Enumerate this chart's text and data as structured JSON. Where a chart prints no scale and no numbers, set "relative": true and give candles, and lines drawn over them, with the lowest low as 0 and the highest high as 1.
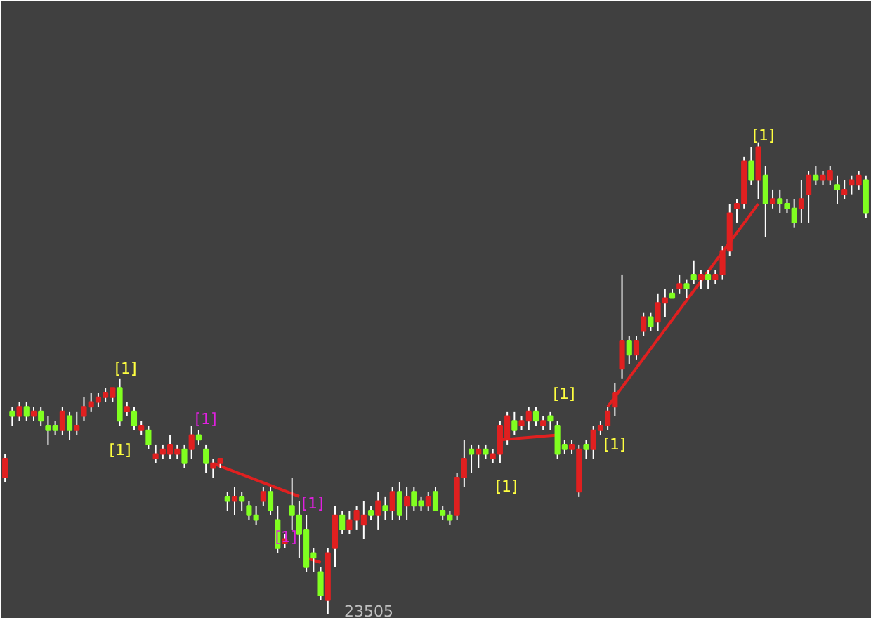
{
  "chart_data": {
    "type": "candlestick",
    "relative": true,
    "grid": false,
    "tick_labels": false,
    "categories": [
      null,
      null,
      null,
      null,
      null,
      null,
      null,
      null,
      null,
      null,
      null,
      null,
      null,
      null,
      null,
      null,
      null,
      null,
      null,
      null,
      null,
      null,
      null,
      null,
      null,
      null,
      null,
      null,
      null,
      null,
      null,
      null,
      null,
      null,
      null,
      null,
      null,
      null,
      null,
      null,
      null,
      null,
      null,
      null,
      null,
      null,
      null,
      null,
      null,
      null,
      null,
      null,
      null,
      null,
      null,
      null,
      null,
      null,
      null,
      null,
      null,
      null,
      null,
      null,
      null,
      null,
      null,
      null,
      null,
      null,
      null,
      null,
      null,
      null,
      null,
      null,
      null,
      null,
      null,
      null,
      null,
      null,
      null,
      null,
      null,
      null,
      null,
      null,
      null,
      null,
      null,
      null,
      null,
      null,
      null,
      null,
      null,
      null,
      null,
      null,
      null,
      null,
      null,
      null,
      null,
      null,
      null,
      null,
      null,
      null,
      null,
      null,
      null,
      null,
      null,
      null,
      null,
      null,
      null,
      null,
      null
    ],
    "ohlc": [
      [
        0.29,
        0.34,
        0.28,
        0.33
      ],
      [
        0.43,
        0.44,
        0.4,
        0.42
      ],
      [
        0.42,
        0.45,
        0.41,
        0.44
      ],
      [
        0.44,
        0.45,
        0.41,
        0.42
      ],
      [
        0.42,
        0.44,
        0.41,
        0.43
      ],
      [
        0.43,
        0.44,
        0.4,
        0.41
      ],
      [
        0.4,
        0.42,
        0.36,
        0.39
      ],
      [
        0.4,
        0.41,
        0.38,
        0.39
      ],
      [
        0.39,
        0.44,
        0.38,
        0.43
      ],
      [
        0.42,
        0.43,
        0.37,
        0.39
      ],
      [
        0.39,
        0.43,
        0.38,
        0.4
      ],
      [
        0.42,
        0.46,
        0.41,
        0.44
      ],
      [
        0.44,
        0.47,
        0.43,
        0.45
      ],
      [
        0.45,
        0.47,
        0.44,
        0.46
      ],
      [
        0.46,
        0.48,
        0.45,
        0.47
      ],
      [
        0.46,
        0.48,
        0.45,
        0.48
      ],
      [
        0.48,
        0.5,
        0.4,
        0.41
      ],
      [
        0.43,
        0.45,
        0.42,
        0.44
      ],
      [
        0.43,
        0.44,
        0.39,
        0.4
      ],
      [
        0.39,
        0.41,
        0.38,
        0.4
      ],
      [
        0.39,
        0.4,
        0.35,
        0.36
      ],
      [
        0.33,
        0.36,
        0.32,
        0.34
      ],
      [
        0.34,
        0.36,
        0.33,
        0.35
      ],
      [
        0.34,
        0.38,
        0.33,
        0.36
      ],
      [
        0.34,
        0.36,
        0.33,
        0.35
      ],
      [
        0.35,
        0.36,
        0.31,
        0.32
      ],
      [
        0.35,
        0.4,
        0.33,
        0.38
      ],
      [
        0.38,
        0.39,
        0.36,
        0.37
      ],
      [
        0.35,
        0.36,
        0.3,
        0.32
      ],
      [
        0.31,
        0.33,
        0.29,
        0.32
      ],
      [
        0.32,
        0.33,
        0.31,
        0.33
      ],
      [
        0.25,
        0.26,
        0.22,
        0.24
      ],
      [
        0.24,
        0.27,
        0.21,
        0.25
      ],
      [
        0.25,
        0.26,
        0.22,
        0.24
      ],
      [
        0.23,
        0.24,
        0.2,
        0.21
      ],
      [
        0.21,
        0.23,
        0.19,
        0.2
      ],
      [
        0.24,
        0.27,
        0.23,
        0.26
      ],
      [
        0.26,
        0.27,
        0.21,
        0.22
      ],
      [
        0.2,
        0.23,
        0.13,
        0.14
      ],
      [
        0.15,
        0.17,
        0.14,
        0.16
      ],
      [
        0.23,
        0.29,
        0.18,
        0.21
      ],
      [
        0.21,
        0.24,
        0.12,
        0.17
      ],
      [
        0.18,
        0.21,
        0.09,
        0.1
      ],
      [
        0.13,
        0.14,
        0.09,
        0.12
      ],
      [
        0.09,
        0.1,
        0.03,
        0.04
      ],
      [
        0.03,
        0.14,
        0.0,
        0.13
      ],
      [
        0.14,
        0.23,
        0.1,
        0.21
      ],
      [
        0.21,
        0.22,
        0.17,
        0.18
      ],
      [
        0.18,
        0.22,
        0.17,
        0.2
      ],
      [
        0.2,
        0.23,
        0.18,
        0.22
      ],
      [
        0.19,
        0.24,
        0.16,
        0.21
      ],
      [
        0.22,
        0.23,
        0.2,
        0.21
      ],
      [
        0.21,
        0.26,
        0.18,
        0.24
      ],
      [
        0.23,
        0.25,
        0.2,
        0.22
      ],
      [
        0.22,
        0.27,
        0.2,
        0.26
      ],
      [
        0.26,
        0.28,
        0.2,
        0.21
      ],
      [
        0.23,
        0.27,
        0.2,
        0.25
      ],
      [
        0.26,
        0.27,
        0.22,
        0.23
      ],
      [
        0.24,
        0.25,
        0.22,
        0.23
      ],
      [
        0.23,
        0.26,
        0.22,
        0.25
      ],
      [
        0.26,
        0.27,
        0.22,
        0.22
      ],
      [
        0.22,
        0.23,
        0.2,
        0.21
      ],
      [
        0.21,
        0.22,
        0.19,
        0.2
      ],
      [
        0.21,
        0.3,
        0.2,
        0.29
      ],
      [
        0.29,
        0.37,
        0.27,
        0.33
      ],
      [
        0.35,
        0.36,
        0.3,
        0.34
      ],
      [
        0.34,
        0.36,
        0.31,
        0.35
      ],
      [
        0.35,
        0.36,
        0.33,
        0.34
      ],
      [
        0.33,
        0.35,
        0.32,
        0.34
      ],
      [
        0.34,
        0.41,
        0.32,
        0.4
      ],
      [
        0.37,
        0.43,
        0.36,
        0.42
      ],
      [
        0.41,
        0.43,
        0.38,
        0.39
      ],
      [
        0.4,
        0.42,
        0.39,
        0.41
      ],
      [
        0.41,
        0.44,
        0.39,
        0.43
      ],
      [
        0.43,
        0.44,
        0.4,
        0.41
      ],
      [
        0.4,
        0.42,
        0.39,
        0.41
      ],
      [
        0.42,
        0.43,
        0.39,
        0.41
      ],
      [
        0.4,
        0.41,
        0.33,
        0.34
      ],
      [
        0.36,
        0.37,
        0.34,
        0.35
      ],
      [
        0.35,
        0.37,
        0.34,
        0.36
      ],
      [
        0.26,
        0.36,
        0.25,
        0.35
      ],
      [
        0.36,
        0.37,
        0.33,
        0.35
      ],
      [
        0.35,
        0.4,
        0.33,
        0.39
      ],
      [
        0.39,
        0.41,
        0.38,
        0.4
      ],
      [
        0.4,
        0.44,
        0.39,
        0.43
      ],
      [
        0.44,
        0.49,
        0.42,
        0.47
      ],
      [
        0.52,
        0.72,
        0.5,
        0.58
      ],
      [
        0.58,
        0.59,
        0.53,
        0.55
      ],
      [
        0.55,
        0.59,
        0.54,
        0.58
      ],
      [
        0.6,
        0.64,
        0.59,
        0.63
      ],
      [
        0.63,
        0.64,
        0.6,
        0.61
      ],
      [
        0.62,
        0.68,
        0.6,
        0.66
      ],
      [
        0.66,
        0.69,
        0.63,
        0.67
      ],
      [
        0.68,
        0.69,
        0.67,
        0.67
      ],
      [
        0.69,
        0.72,
        0.68,
        0.7
      ],
      [
        0.7,
        0.71,
        0.67,
        0.69
      ],
      [
        0.72,
        0.75,
        0.7,
        0.71
      ],
      [
        0.71,
        0.73,
        0.69,
        0.72
      ],
      [
        0.72,
        0.73,
        0.69,
        0.71
      ],
      [
        0.71,
        0.73,
        0.7,
        0.72
      ],
      [
        0.72,
        0.78,
        0.71,
        0.77
      ],
      [
        0.77,
        0.87,
        0.76,
        0.85
      ],
      [
        0.86,
        0.88,
        0.83,
        0.87
      ],
      [
        0.87,
        0.97,
        0.86,
        0.96
      ],
      [
        0.96,
        0.99,
        0.91,
        0.92
      ],
      [
        0.92,
        1.0,
        0.88,
        0.99
      ],
      [
        0.93,
        0.95,
        0.8,
        0.87
      ],
      [
        0.87,
        0.9,
        0.86,
        0.88
      ],
      [
        0.88,
        0.9,
        0.85,
        0.87
      ],
      [
        0.87,
        0.88,
        0.85,
        0.86
      ],
      [
        0.86,
        0.88,
        0.82,
        0.83
      ],
      [
        0.86,
        0.92,
        0.83,
        0.88
      ],
      [
        0.89,
        0.94,
        0.83,
        0.93
      ],
      [
        0.93,
        0.95,
        0.91,
        0.92
      ],
      [
        0.92,
        0.94,
        0.91,
        0.93
      ],
      [
        0.92,
        0.95,
        0.91,
        0.94
      ],
      [
        0.91,
        0.93,
        0.87,
        0.9
      ],
      [
        0.89,
        0.92,
        0.88,
        0.9
      ],
      [
        0.91,
        0.93,
        0.89,
        0.92
      ],
      [
        0.91,
        0.94,
        0.9,
        0.93
      ],
      [
        0.92,
        0.93,
        0.84,
        0.85
      ]
    ],
    "colors": [
      "#e02020",
      "#80ff20",
      "#e02020",
      "#80ff20",
      "#e02020",
      "#80ff20",
      "#80ff20",
      "#80ff20",
      "#e02020",
      "#80ff20",
      "#e02020",
      "#e02020",
      "#e02020",
      "#e02020",
      "#e02020",
      "#e02020",
      "#80ff20",
      "#e02020",
      "#80ff20",
      "#e02020",
      "#80ff20",
      "#e02020",
      "#e02020",
      "#e02020",
      "#e02020",
      "#80ff20",
      "#e02020",
      "#80ff20",
      "#80ff20",
      "#e02020",
      "#e02020",
      "#80ff20",
      "#e02020",
      "#80ff20",
      "#80ff20",
      "#80ff20",
      "#e02020",
      "#80ff20",
      "#80ff20",
      "#e02020",
      "#80ff20",
      "#80ff20",
      "#80ff20",
      "#80ff20",
      "#80ff20",
      "#e02020",
      "#e02020",
      "#80ff20",
      "#e02020",
      "#e02020",
      "#e02020",
      "#80ff20",
      "#e02020",
      "#80ff20",
      "#e02020",
      "#80ff20",
      "#e02020",
      "#80ff20",
      "#80ff20",
      "#e02020",
      "#80ff20",
      "#80ff20",
      "#80ff20",
      "#e02020",
      "#e02020",
      "#80ff20",
      "#e02020",
      "#80ff20",
      "#e02020",
      "#e02020",
      "#e02020",
      "#80ff20",
      "#e02020",
      "#e02020",
      "#80ff20",
      "#e02020",
      "#80ff20",
      "#80ff20",
      "#80ff20",
      "#e02020",
      "#e02020",
      "#80ff20",
      "#e02020",
      "#e02020",
      "#e02020",
      "#e02020",
      "#e02020",
      "#80ff20",
      "#e02020",
      "#e02020",
      "#80ff20",
      "#e02020",
      "#e02020",
      "#80ff20",
      "#e02020",
      "#80ff20",
      "#80ff20",
      "#e02020",
      "#80ff20",
      "#e02020",
      "#e02020",
      "#e02020",
      "#e02020",
      "#e02020",
      "#80ff20",
      "#e02020",
      "#80ff20",
      "#e02020",
      "#80ff20",
      "#80ff20",
      "#80ff20",
      "#e02020",
      "#e02020",
      "#80ff20",
      "#e02020",
      "#e02020",
      "#80ff20",
      "#e02020",
      "#e02020",
      "#e02020",
      "#80ff20"
    ],
    "series": [
      {
        "type": "line",
        "color": "#e02020",
        "values": [
          null,
          null,
          null,
          null,
          null,
          null,
          null,
          null,
          null,
          null,
          null,
          null,
          null,
          null,
          null,
          null,
          null,
          null,
          null,
          null,
          null,
          null,
          null,
          null,
          null,
          null,
          null,
          null,
          null,
          0.32,
          null,
          null,
          null,
          null,
          null,
          null,
          null,
          null,
          null,
          null,
          null,
          0.25,
          null,
          null,
          null,
          null,
          null,
          null,
          null,
          null,
          null,
          null,
          null,
          null,
          null,
          null,
          null,
          null,
          null,
          null,
          null,
          null,
          null,
          null,
          null,
          null,
          null,
          null,
          null,
          null,
          null,
          null,
          null,
          null,
          null,
          null,
          null,
          null,
          null,
          null,
          null,
          null,
          null,
          null,
          null,
          null,
          null,
          null,
          null,
          null,
          null,
          null,
          null,
          null,
          null,
          null,
          null,
          null,
          null,
          null,
          null,
          null,
          null,
          null,
          null,
          null,
          null,
          null,
          null,
          null,
          null,
          null,
          null,
          null,
          null,
          null,
          null,
          null,
          null,
          null,
          null
        ]
      },
      {
        "type": "line",
        "color": "#e02020",
        "values": [
          null,
          null,
          null,
          null,
          null,
          null,
          null,
          null,
          null,
          null,
          null,
          null,
          null,
          null,
          null,
          null,
          null,
          null,
          null,
          null,
          null,
          null,
          null,
          null,
          null,
          null,
          null,
          null,
          null,
          null,
          null,
          null,
          null,
          null,
          null,
          null,
          null,
          null,
          null,
          null,
          null,
          null,
          0.12,
          null,
          0.11,
          null,
          null,
          null,
          null,
          null,
          null,
          null,
          null,
          null,
          null,
          null,
          null,
          null,
          null,
          null,
          null,
          null,
          null,
          null,
          null,
          null,
          null,
          null,
          null,
          null,
          null,
          null,
          null,
          null,
          null,
          null,
          null,
          null,
          null,
          null,
          null,
          null,
          null,
          null,
          null,
          null,
          null,
          null,
          null,
          null,
          null,
          null,
          null,
          null,
          null,
          null,
          null,
          null,
          null,
          null,
          null,
          null,
          null,
          null,
          null,
          null,
          null,
          null,
          null,
          null,
          null,
          null,
          null,
          null,
          null,
          null,
          null,
          null,
          null,
          null,
          null
        ]
      },
      {
        "type": "line",
        "color": "#e02020",
        "values": [
          null,
          null,
          null,
          null,
          null,
          null,
          null,
          null,
          null,
          null,
          null,
          null,
          null,
          null,
          null,
          null,
          null,
          null,
          null,
          null,
          null,
          null,
          null,
          null,
          null,
          null,
          null,
          null,
          null,
          null,
          null,
          null,
          null,
          null,
          null,
          null,
          null,
          null,
          null,
          null,
          null,
          null,
          null,
          null,
          null,
          null,
          null,
          null,
          null,
          null,
          null,
          null,
          null,
          null,
          null,
          null,
          null,
          null,
          null,
          null,
          null,
          null,
          null,
          null,
          null,
          null,
          null,
          null,
          null,
          0.37,
          null,
          null,
          null,
          null,
          null,
          null,
          null,
          0.38,
          null,
          null,
          null,
          null,
          null,
          null,
          null,
          null,
          null,
          null,
          null,
          null,
          null,
          null,
          null,
          null,
          null,
          null,
          null,
          null,
          null,
          null,
          null,
          null,
          null,
          null,
          null,
          null,
          null,
          null,
          null,
          null,
          null,
          null,
          null,
          null,
          null,
          null,
          null,
          null,
          null,
          null,
          null
        ]
      },
      {
        "type": "line",
        "color": "#e02020",
        "values": [
          null,
          null,
          null,
          null,
          null,
          null,
          null,
          null,
          null,
          null,
          null,
          null,
          null,
          null,
          null,
          null,
          null,
          null,
          null,
          null,
          null,
          null,
          null,
          null,
          null,
          null,
          null,
          null,
          null,
          null,
          null,
          null,
          null,
          null,
          null,
          null,
          null,
          null,
          null,
          null,
          null,
          null,
          null,
          null,
          null,
          null,
          null,
          null,
          null,
          null,
          null,
          null,
          null,
          null,
          null,
          null,
          null,
          null,
          null,
          null,
          null,
          null,
          null,
          null,
          null,
          null,
          null,
          null,
          null,
          null,
          null,
          null,
          null,
          null,
          null,
          null,
          null,
          null,
          null,
          null,
          null,
          null,
          null,
          null,
          0.44,
          null,
          null,
          null,
          null,
          null,
          null,
          null,
          null,
          null,
          null,
          null,
          null,
          null,
          null,
          null,
          null,
          null,
          null,
          null,
          null,
          0.87,
          null,
          null,
          null,
          null,
          null,
          null,
          null,
          null,
          null,
          null,
          null,
          null,
          null,
          null,
          null
        ]
      }
    ],
    "annotations": [
      "[1]",
      "[1]",
      "[1]",
      "[1]",
      "[1]",
      "[1]",
      "[1]",
      "[1]",
      "[1]",
      "23505"
    ]
  }
}
